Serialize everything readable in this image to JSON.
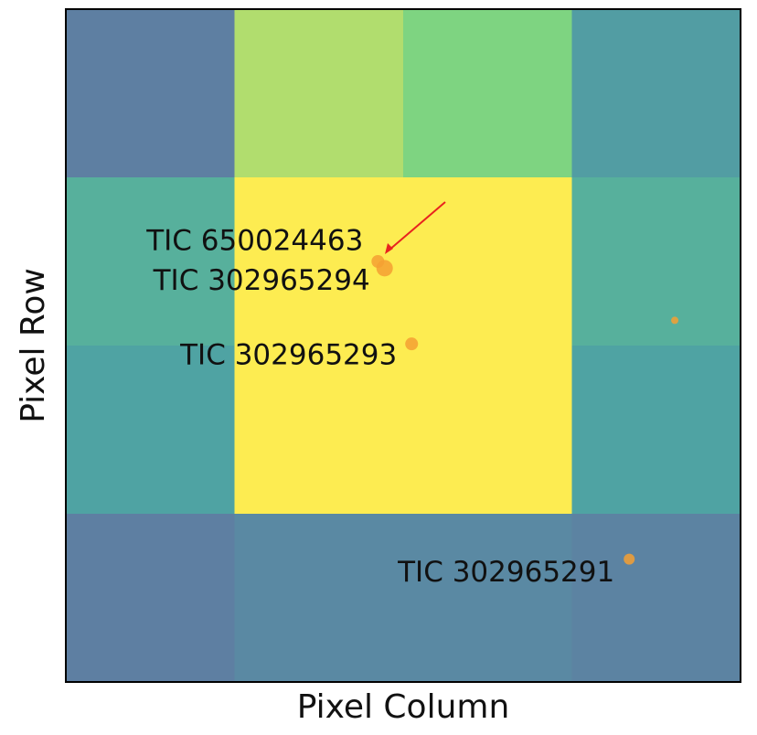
{
  "chart_data": {
    "type": "heatmap",
    "x_label": "Pixel Column",
    "y_label": "Pixel Row",
    "colormap": "viridis",
    "vlim": [
      0,
      1
    ],
    "values": [
      [
        0.3,
        0.85,
        0.75,
        0.45
      ],
      [
        0.55,
        1.0,
        1.0,
        0.55
      ],
      [
        0.48,
        1.0,
        1.0,
        0.48
      ],
      [
        0.3,
        0.35,
        0.35,
        0.32
      ]
    ],
    "xlim": [
      0,
      4
    ],
    "ylim": [
      4,
      0
    ],
    "stars": {
      "color": "#f5a033",
      "x": [
        1.85,
        1.89,
        2.05,
        3.61,
        3.34
      ],
      "y": [
        1.5,
        1.54,
        1.99,
        1.85,
        3.27
      ],
      "sizes": [
        7,
        9,
        7,
        4,
        6
      ],
      "labels": [
        "TIC 650024463",
        "TIC 302965294",
        "TIC 302965293",
        null,
        "TIC 302965291"
      ]
    }
  }
}
